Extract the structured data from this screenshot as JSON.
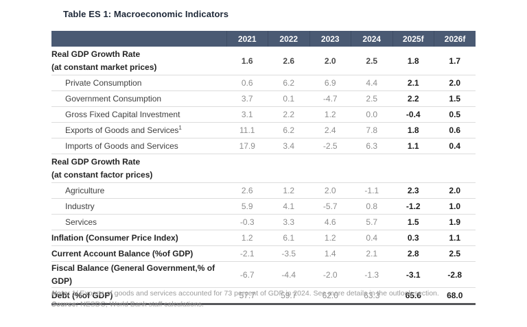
{
  "title": "Table ES 1: Macroeconomic Indicators",
  "colors": {
    "header_bg": "#4a5a73",
    "header_text": "#ffffff",
    "historical_value": "#8d8d8d",
    "forecast_value": "#1c1c1c",
    "row_separator": "#dcdcdc",
    "table_bottom_border": "#55565a"
  },
  "table": {
    "forecast_start_index": 4,
    "columns": [
      "2021",
      "2022",
      "2023",
      "2024",
      "2025f",
      "2026f"
    ],
    "rows": [
      {
        "type": "section-values",
        "label_lines": [
          "Real GDP Growth Rate",
          "(at constant market prices)"
        ],
        "values": [
          "1.6",
          "2.6",
          "2.0",
          "2.5",
          "1.8",
          "1.7"
        ],
        "hist_strong": true
      },
      {
        "type": "sub",
        "label": "Private Consumption",
        "values": [
          "0.6",
          "6.2",
          "6.9",
          "4.4",
          "2.1",
          "2.0"
        ]
      },
      {
        "type": "sub",
        "label": "Government Consumption",
        "values": [
          "3.7",
          "0.1",
          "-4.7",
          "2.5",
          "2.2",
          "1.5"
        ]
      },
      {
        "type": "sub",
        "label": "Gross Fixed Capital Investment",
        "values": [
          "3.1",
          "2.2",
          "1.2",
          "0.0",
          "-0.4",
          "0.5"
        ]
      },
      {
        "type": "sub",
        "label": "Exports of Goods and Services",
        "sup": "1",
        "values": [
          "11.1",
          "6.2",
          "2.4",
          "7.8",
          "1.8",
          "0.6"
        ]
      },
      {
        "type": "sub",
        "label": "Imports of Goods and Services",
        "values": [
          "17.9",
          "3.4",
          "-2.5",
          "6.3",
          "1.1",
          "0.4"
        ]
      },
      {
        "type": "section",
        "label_lines": [
          "Real GDP Growth Rate",
          "(at constant factor prices)"
        ],
        "values": [
          "",
          "",
          "",
          "",
          "",
          ""
        ]
      },
      {
        "type": "sub",
        "label": "Agriculture",
        "values": [
          "2.6",
          "1.2",
          "2.0",
          "-1.1",
          "2.3",
          "2.0"
        ]
      },
      {
        "type": "sub",
        "label": "Industry",
        "values": [
          "5.9",
          "4.1",
          "-5.7",
          "0.8",
          "-1.2",
          "1.0"
        ]
      },
      {
        "type": "sub",
        "label": "Services",
        "values": [
          "-0.3",
          "3.3",
          "4.6",
          "5.7",
          "1.5",
          "1.9"
        ]
      },
      {
        "type": "bold",
        "label": "Inflation (Consumer Price Index)",
        "values": [
          "1.2",
          "6.1",
          "1.2",
          "0.4",
          "0.3",
          "1.1"
        ]
      },
      {
        "type": "bold",
        "label": "Current Account Balance (%of GDP)",
        "values": [
          "-2.1",
          "-3.5",
          "1.4",
          "2.1",
          "2.8",
          "2.5"
        ]
      },
      {
        "type": "bold",
        "label": "Fiscal Balance (General Government,% of GDP)",
        "values": [
          "-6.7",
          "-4.4",
          "-2.0",
          "-1.3",
          "-3.1",
          "-2.8"
        ]
      },
      {
        "type": "bold",
        "label": "Debt (%of GDP)",
        "values": [
          "57.7",
          "59.7",
          "62.0",
          "63.3",
          "65.6",
          "68.0"
        ]
      }
    ]
  },
  "notes": {
    "note_label": "Note:",
    "note_text": " 1/ Exports of goods and services accounted for 73 percent of GDP in 2024. See more details in the outlook section.",
    "source_label": "Source:",
    "source_text": " NESDC; World Bank staff calculations."
  }
}
